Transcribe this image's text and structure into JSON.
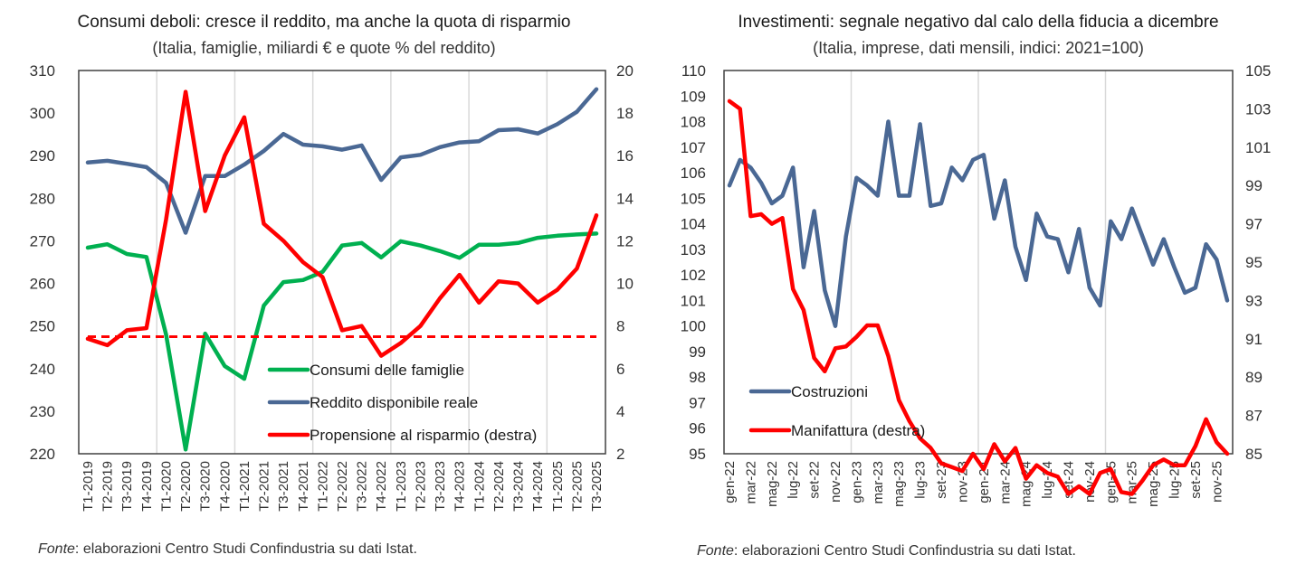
{
  "chart_data": [
    {
      "type": "line",
      "title": "Consumi deboli: cresce il reddito, ma anche la quota di risparmio",
      "subtitle": "(Italia, famiglie, miliardi € e quote % del reddito)",
      "source_label": "Fonte",
      "source_text": ": elaborazioni Centro Studi Confindustria su dati Istat.",
      "categories": [
        "T1-2019",
        "T2-2019",
        "T3-2019",
        "T4-2019",
        "T1-2020",
        "T2-2020",
        "T3-2020",
        "T4-2020",
        "T1-2021",
        "T2-2021",
        "T3-2021",
        "T4-2021",
        "T1-2022",
        "T2-2022",
        "T3-2022",
        "T4-2022",
        "T1-2023",
        "T2-2023",
        "T3-2023",
        "T4-2023",
        "T1-2024",
        "T2-2024",
        "T3-2024",
        "T4-2024",
        "T1-2025",
        "T2-2025",
        "T3-2025"
      ],
      "y_left": {
        "min": 220,
        "max": 310,
        "step": 10,
        "ticks": [
          "220",
          "230",
          "240",
          "250",
          "260",
          "270",
          "280",
          "290",
          "300",
          "310"
        ]
      },
      "y_right": {
        "min": 2,
        "max": 20,
        "step": 2,
        "ticks": [
          "2",
          "4",
          "6",
          "8",
          "10",
          "12",
          "14",
          "16",
          "18",
          "20"
        ]
      },
      "grid": "vertical-yearly",
      "legend_position": "bottom-right",
      "series": [
        {
          "name": "Consumi delle famiglie",
          "axis": "left",
          "color": "#00b050",
          "values": [
            268.4,
            269.2,
            266.9,
            266.2,
            248.0,
            221.0,
            248.2,
            240.6,
            237.6,
            254.8,
            260.3,
            260.8,
            262.7,
            268.9,
            269.5,
            266.1,
            269.9,
            268.9,
            267.6,
            266.0,
            269.1,
            269.1,
            269.5,
            270.7,
            271.2,
            271.5,
            271.7
          ]
        },
        {
          "name": "Reddito disponibile reale",
          "axis": "left",
          "color": "#4a6894",
          "values": [
            288.4,
            288.8,
            288.1,
            287.3,
            283.6,
            271.9,
            285.2,
            285.2,
            287.9,
            291.1,
            295.1,
            292.6,
            292.2,
            291.4,
            292.4,
            284.3,
            289.6,
            290.2,
            292.0,
            293.1,
            293.4,
            296.0,
            296.2,
            295.2,
            297.4,
            300.3,
            305.6
          ]
        },
        {
          "name": "Propensione al risparmio (destra)",
          "axis": "right",
          "color": "#ff0000",
          "values": [
            7.4,
            7.1,
            7.8,
            7.9,
            13.0,
            19.0,
            13.4,
            16.0,
            17.8,
            12.8,
            12.0,
            11.0,
            10.3,
            7.8,
            8.0,
            6.6,
            7.2,
            8.0,
            9.3,
            10.4,
            9.1,
            10.1,
            10.0,
            9.1,
            9.7,
            10.7,
            13.2
          ]
        },
        {
          "name": "reference",
          "axis": "right",
          "color": "#ff0000",
          "style": "dashed",
          "value": 7.5
        }
      ]
    },
    {
      "type": "line",
      "title": "Investimenti: segnale negativo dal calo della fiducia a dicembre",
      "subtitle": "(Italia, imprese, dati mensili, indici: 2021=100)",
      "source_label": "Fonte",
      "source_text": ": elaborazioni Centro Studi Confindustria su dati Istat.",
      "categories": [
        "gen-22",
        "feb-22",
        "mar-22",
        "apr-22",
        "mag-22",
        "giu-22",
        "lug-22",
        "ago-22",
        "set-22",
        "ott-22",
        "nov-22",
        "dic-22",
        "gen-23",
        "feb-23",
        "mar-23",
        "apr-23",
        "mag-23",
        "giu-23",
        "lug-23",
        "ago-23",
        "set-23",
        "ott-23",
        "nov-23",
        "dic-23",
        "gen-24",
        "feb-24",
        "mar-24",
        "apr-24",
        "mag-24",
        "giu-24",
        "lug-24",
        "ago-24",
        "set-24",
        "ott-24",
        "nov-24",
        "dic-24",
        "gen-25",
        "feb-25",
        "mar-25",
        "apr-25",
        "mag-25",
        "giu-25",
        "lug-25",
        "ago-25",
        "set-25",
        "ott-25",
        "nov-25",
        "dic-25"
      ],
      "x_tick_labels": [
        "gen-22",
        "mar-22",
        "mag-22",
        "lug-22",
        "set-22",
        "nov-22",
        "gen-23",
        "mar-23",
        "mag-23",
        "lug-23",
        "set-23",
        "nov-23",
        "gen-24",
        "mar-24",
        "mag-24",
        "lug-24",
        "set-24",
        "nov-24",
        "gen-25",
        "mar-25",
        "mag-25",
        "lug-25",
        "set-25",
        "nov-25"
      ],
      "y_left": {
        "min": 95,
        "max": 110,
        "step": 1,
        "ticks": [
          "95",
          "96",
          "97",
          "98",
          "99",
          "100",
          "101",
          "102",
          "103",
          "104",
          "105",
          "106",
          "107",
          "108",
          "109",
          "110"
        ]
      },
      "y_right": {
        "min": 85,
        "max": 105,
        "step": 2,
        "ticks": [
          "85",
          "87",
          "89",
          "91",
          "93",
          "95",
          "97",
          "99",
          "101",
          "103",
          "105"
        ]
      },
      "grid": "vertical-yearly",
      "legend_position": "bottom-left",
      "series": [
        {
          "name": "Costruzioni",
          "axis": "left",
          "color": "#4a6894",
          "values": [
            105.5,
            106.5,
            106.2,
            105.6,
            104.8,
            105.1,
            106.2,
            102.3,
            104.5,
            101.4,
            100.0,
            103.5,
            105.8,
            105.5,
            105.1,
            108.0,
            105.1,
            105.1,
            107.9,
            104.7,
            104.8,
            106.2,
            105.7,
            106.5,
            106.7,
            104.2,
            105.7,
            103.1,
            101.8,
            104.4,
            103.5,
            103.4,
            102.1,
            103.8,
            101.5,
            100.8,
            104.1,
            103.4,
            104.6,
            103.5,
            102.4,
            103.4,
            102.3,
            101.3,
            101.5,
            103.2,
            102.6,
            101.0
          ]
        },
        {
          "name": "Manifattura (destra)",
          "axis": "right",
          "color": "#ff0000",
          "values": [
            103.4,
            103.0,
            97.4,
            97.5,
            97.0,
            97.3,
            93.6,
            92.5,
            90.0,
            89.3,
            90.5,
            90.6,
            91.1,
            91.7,
            91.7,
            90.1,
            87.8,
            86.7,
            85.8,
            85.3,
            84.5,
            84.3,
            84.1,
            85.0,
            84.2,
            85.5,
            84.6,
            85.3,
            83.7,
            84.4,
            84.0,
            83.8,
            82.9,
            83.3,
            82.9,
            84.0,
            84.2,
            83.0,
            82.9,
            83.6,
            84.4,
            84.7,
            84.4,
            84.4,
            85.4,
            86.8,
            85.6,
            85.0
          ]
        }
      ]
    }
  ]
}
